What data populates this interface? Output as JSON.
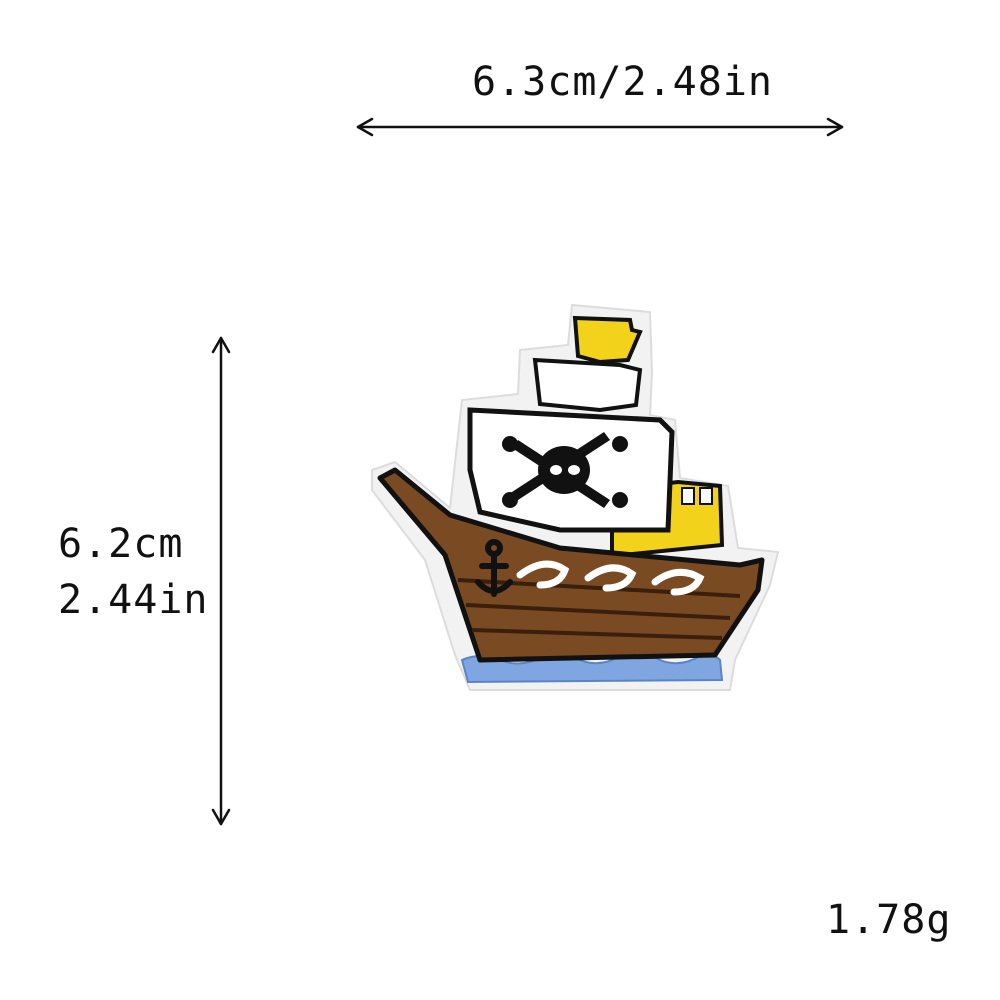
{
  "dimensions": {
    "width_label": "6.3cm/2.48in",
    "height_cm": "6.2cm",
    "height_in": "2.44in"
  },
  "weight_label": "1.78g",
  "product": {
    "image": "pirate-ship-embroidered-patch",
    "colors": {
      "hull": "#7a4a22",
      "hull_stripe": "#3a1f0c",
      "sail": "#ffffff",
      "flag": "#f2d21b",
      "water": "#7fa6e0",
      "outline": "#111111",
      "border": "#e6e6e6"
    }
  }
}
